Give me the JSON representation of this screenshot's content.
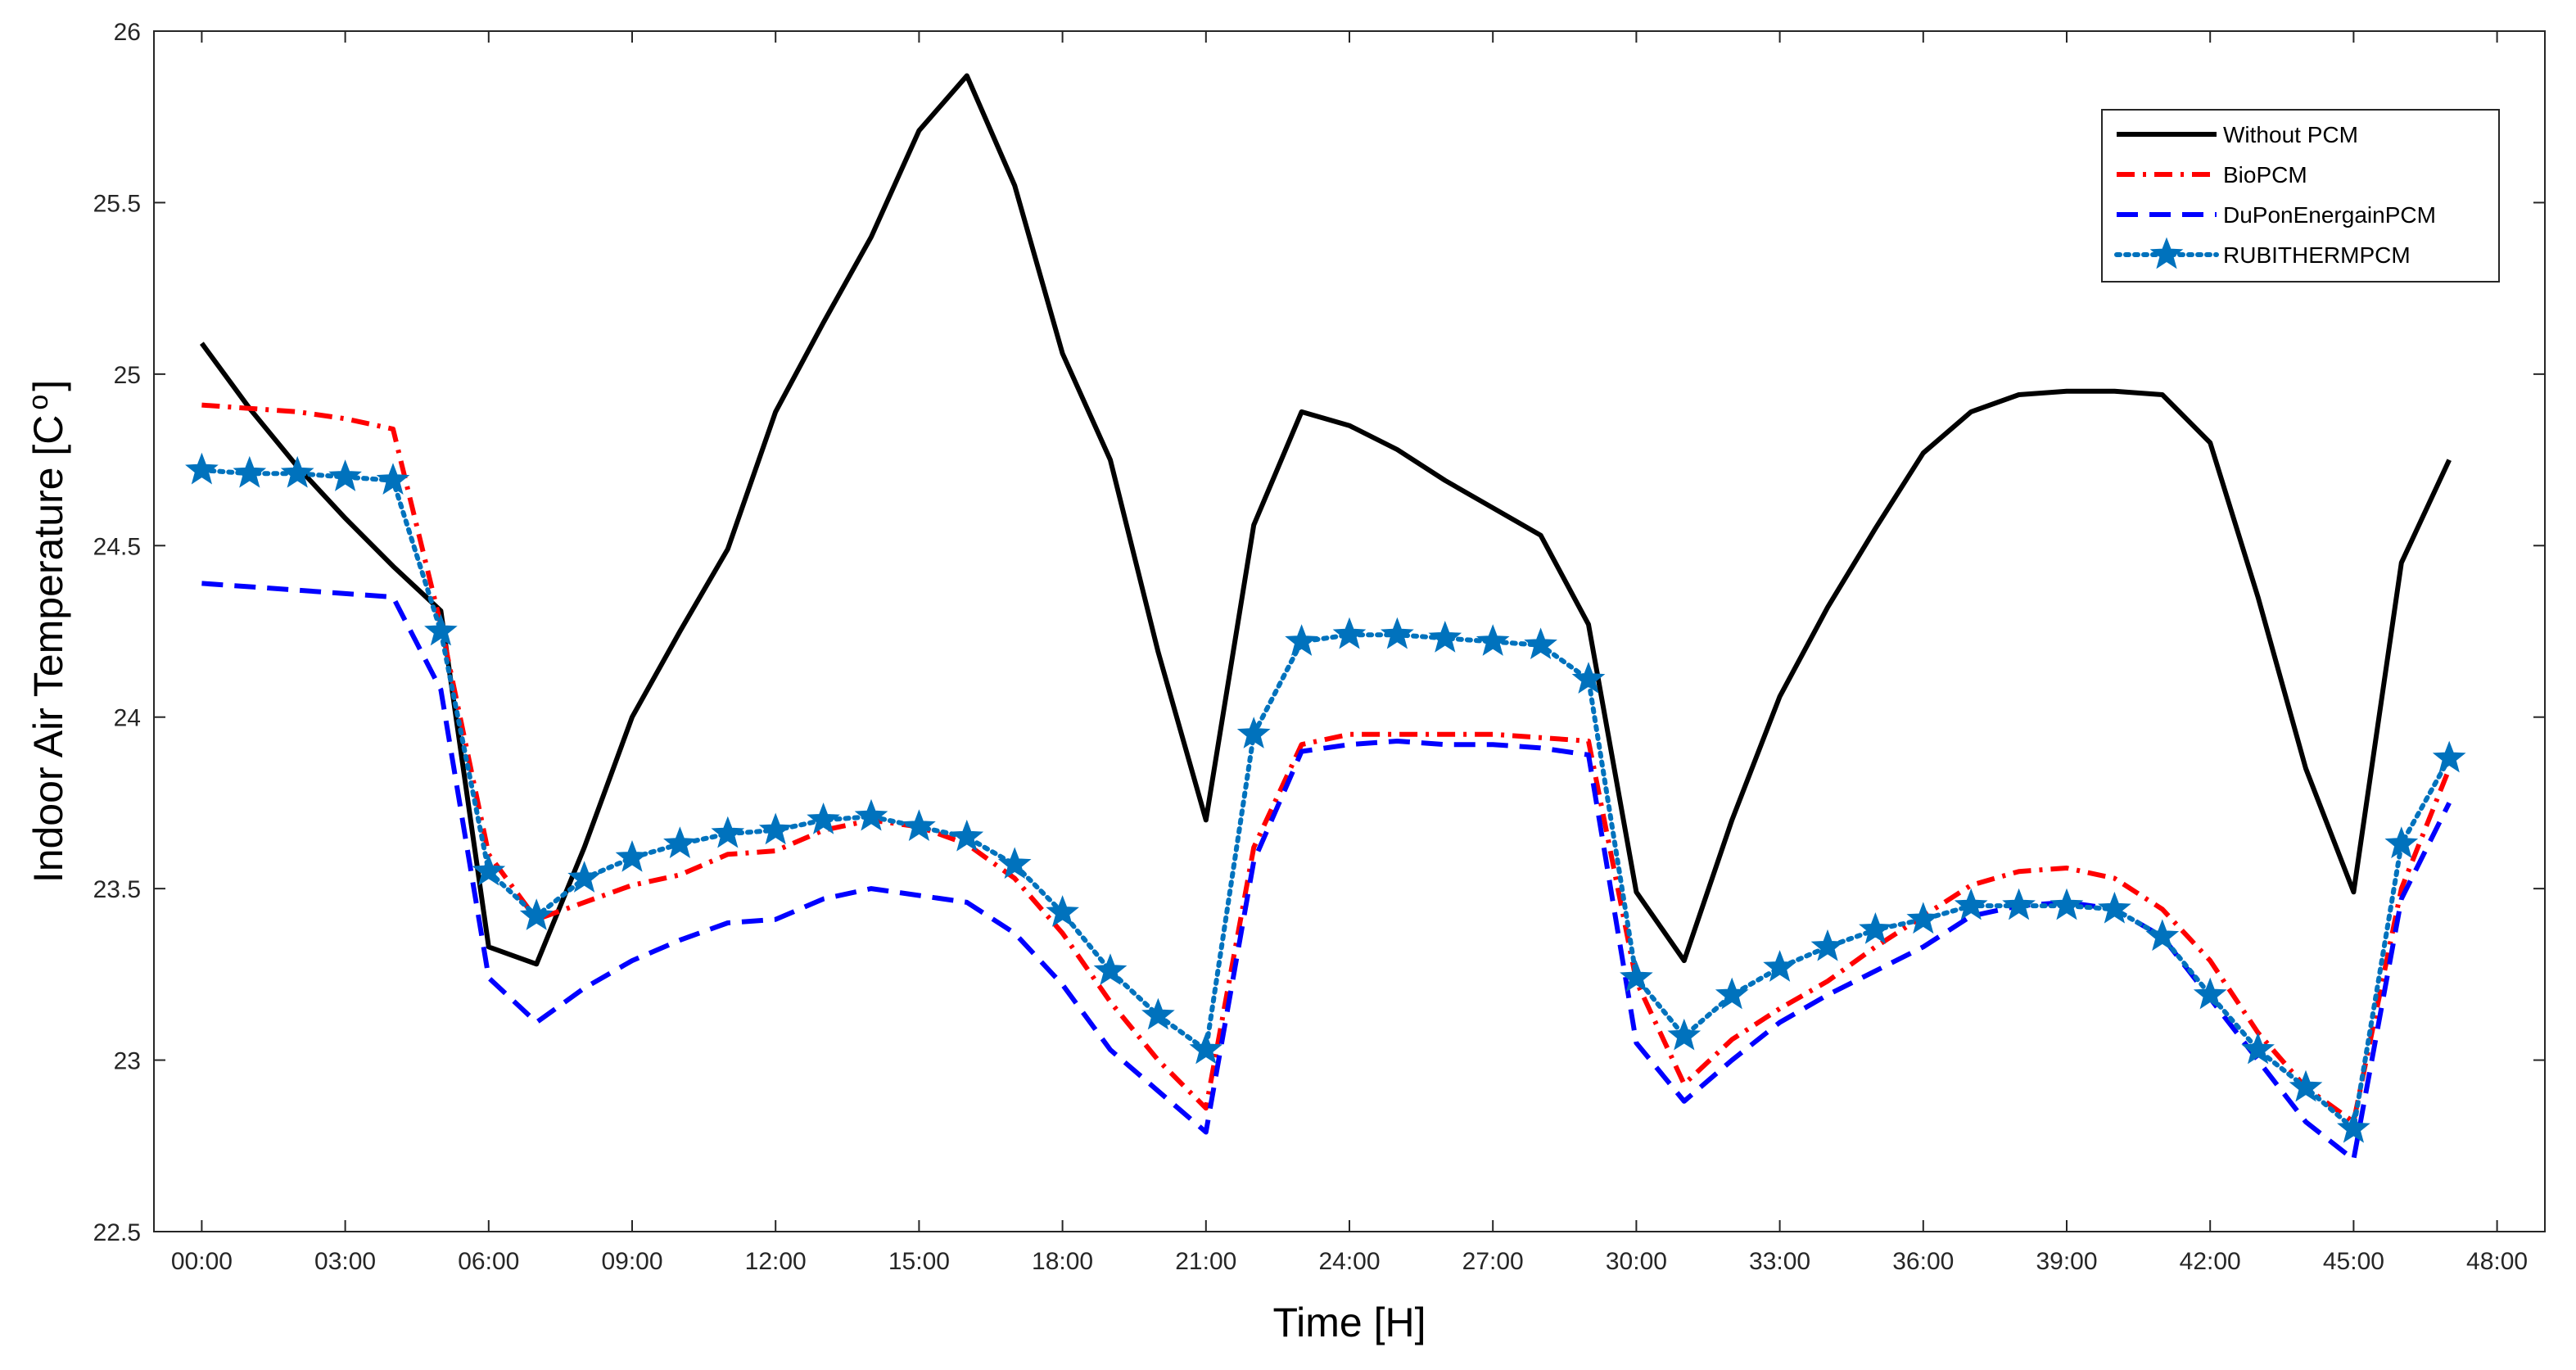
{
  "chart_data": {
    "type": "line",
    "title": "",
    "xlabel": "Time [H]",
    "ylabel": "Indoor Air Temperature [C",
    "ylabel_superscript": "o",
    "ylabel_suffix": "]",
    "xlim": [
      -1,
      49
    ],
    "ylim": [
      22.5,
      26
    ],
    "xticks": [
      0,
      3,
      6,
      9,
      12,
      15,
      18,
      21,
      24,
      27,
      30,
      33,
      36,
      39,
      42,
      45,
      48
    ],
    "xtick_labels": [
      "00:00",
      "03:00",
      "06:00",
      "09:00",
      "12:00",
      "15:00",
      "18:00",
      "21:00",
      "24:00",
      "27:00",
      "30:00",
      "33:00",
      "36:00",
      "39:00",
      "42:00",
      "45:00",
      "48:00"
    ],
    "yticks": [
      22.5,
      23,
      23.5,
      24,
      24.5,
      25,
      25.5,
      26
    ],
    "ytick_labels": [
      "22.5",
      "23",
      "23.5",
      "24",
      "24.5",
      "25",
      "25.5",
      "26"
    ],
    "grid": false,
    "legend_position": "top-right",
    "x": [
      0,
      1,
      2,
      3,
      4,
      5,
      6,
      7,
      8,
      9,
      10,
      11,
      12,
      13,
      14,
      15,
      16,
      17,
      18,
      19,
      20,
      21,
      22,
      23,
      24,
      25,
      26,
      27,
      28,
      29,
      30,
      31,
      32,
      33,
      34,
      35,
      36,
      37,
      38,
      39,
      40,
      41,
      42,
      43,
      44,
      45,
      46,
      47
    ],
    "series": [
      {
        "name": "Without PCM",
        "color": "#000000",
        "style": "solid",
        "marker": "none",
        "values": [
          25.09,
          24.9,
          24.73,
          24.58,
          24.44,
          24.31,
          23.33,
          23.28,
          23.62,
          24.0,
          24.25,
          24.49,
          24.89,
          25.15,
          25.4,
          25.71,
          25.87,
          25.55,
          25.06,
          24.75,
          24.19,
          23.7,
          24.56,
          24.89,
          24.85,
          24.78,
          24.69,
          24.61,
          24.53,
          24.27,
          23.49,
          23.29,
          23.7,
          24.06,
          24.32,
          24.55,
          24.77,
          24.89,
          24.94,
          24.95,
          24.95,
          24.94,
          24.8,
          24.35,
          23.85,
          23.49,
          24.45,
          24.75
        ]
      },
      {
        "name": "BioPCM",
        "color": "#ff0000",
        "style": "dashdot",
        "marker": "none",
        "values": [
          24.91,
          24.9,
          24.89,
          24.87,
          24.84,
          24.27,
          23.6,
          23.41,
          23.46,
          23.51,
          23.54,
          23.6,
          23.61,
          23.67,
          23.7,
          23.68,
          23.63,
          23.53,
          23.37,
          23.17,
          23.0,
          22.86,
          23.62,
          23.92,
          23.95,
          23.95,
          23.95,
          23.95,
          23.94,
          23.93,
          23.23,
          22.93,
          23.06,
          23.15,
          23.23,
          23.33,
          23.42,
          23.51,
          23.55,
          23.56,
          23.53,
          23.44,
          23.29,
          23.08,
          22.92,
          22.82,
          23.5,
          23.85
        ]
      },
      {
        "name": "DuPonEnergainPCM",
        "color": "#0000ff",
        "style": "dash",
        "marker": "none",
        "values": [
          24.39,
          24.38,
          24.37,
          24.36,
          24.35,
          24.08,
          23.24,
          23.11,
          23.21,
          23.29,
          23.35,
          23.4,
          23.41,
          23.47,
          23.5,
          23.48,
          23.46,
          23.37,
          23.22,
          23.03,
          22.91,
          22.79,
          23.58,
          23.9,
          23.92,
          23.93,
          23.92,
          23.92,
          23.91,
          23.89,
          23.05,
          22.88,
          23.0,
          23.11,
          23.19,
          23.26,
          23.33,
          23.42,
          23.45,
          23.46,
          23.44,
          23.36,
          23.18,
          23.0,
          22.82,
          22.71,
          23.47,
          23.75
        ]
      },
      {
        "name": "RUBITHERMPCM",
        "color": "#0072bd",
        "style": "dotted",
        "marker": "star",
        "values": [
          24.72,
          24.71,
          24.71,
          24.7,
          24.69,
          24.25,
          23.55,
          23.42,
          23.53,
          23.59,
          23.63,
          23.66,
          23.67,
          23.7,
          23.71,
          23.68,
          23.65,
          23.57,
          23.43,
          23.26,
          23.13,
          23.03,
          23.95,
          24.22,
          24.24,
          24.24,
          24.23,
          24.22,
          24.21,
          24.11,
          23.24,
          23.07,
          23.19,
          23.27,
          23.33,
          23.38,
          23.41,
          23.45,
          23.45,
          23.45,
          23.44,
          23.36,
          23.19,
          23.03,
          22.92,
          22.8,
          23.63,
          23.88
        ]
      }
    ]
  }
}
